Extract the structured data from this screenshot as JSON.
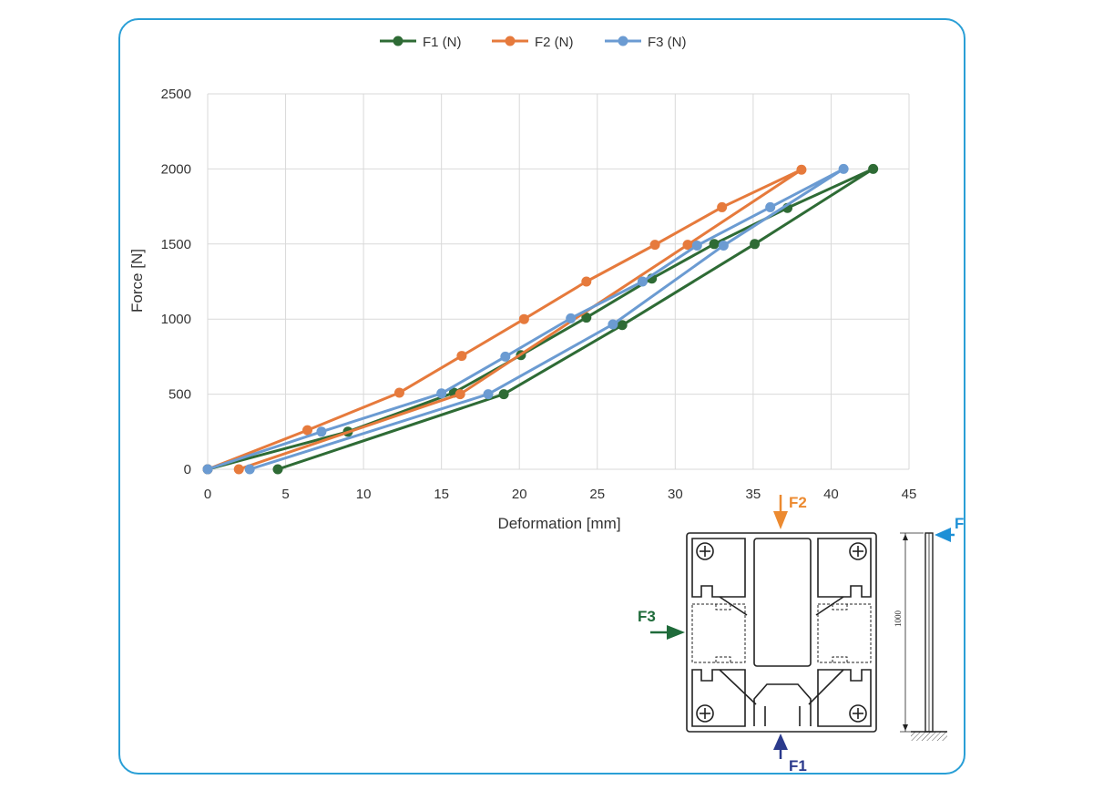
{
  "chart_data": {
    "type": "line",
    "title": "",
    "xlabel": "Deformation [mm]",
    "ylabel": "Force [N]",
    "xlim": [
      0,
      45
    ],
    "ylim": [
      0,
      2500
    ],
    "xticks": [
      0,
      5,
      10,
      15,
      20,
      25,
      30,
      35,
      40,
      45
    ],
    "yticks": [
      0,
      500,
      1000,
      1500,
      2000,
      2500
    ],
    "grid": true,
    "legend_position": "top",
    "series": [
      {
        "name": "F1 (N)",
        "color": "#2e6b35",
        "points": [
          [
            0,
            0
          ],
          [
            9,
            250
          ],
          [
            15.8,
            510
          ],
          [
            20.1,
            760
          ],
          [
            24.3,
            1010
          ],
          [
            28.5,
            1270
          ],
          [
            32.5,
            1500
          ],
          [
            37.2,
            1740
          ],
          [
            42.7,
            2000
          ],
          [
            35.1,
            1500
          ],
          [
            26.6,
            960
          ],
          [
            19,
            500
          ],
          [
            4.5,
            0
          ]
        ]
      },
      {
        "name": "F2 (N)",
        "color": "#e67a3c",
        "points": [
          [
            0,
            0
          ],
          [
            6.4,
            260
          ],
          [
            12.3,
            510
          ],
          [
            16.3,
            755
          ],
          [
            20.3,
            1000
          ],
          [
            24.3,
            1250
          ],
          [
            28.7,
            1495
          ],
          [
            33,
            1745
          ],
          [
            38.1,
            1995
          ],
          [
            30.8,
            1495
          ],
          [
            16.2,
            500
          ],
          [
            2,
            0
          ]
        ]
      },
      {
        "name": "F3 (N)",
        "color": "#6b9bd2",
        "points": [
          [
            0,
            0
          ],
          [
            7.3,
            250
          ],
          [
            15,
            505
          ],
          [
            19.1,
            750
          ],
          [
            23.3,
            1005
          ],
          [
            27.9,
            1250
          ],
          [
            31.4,
            1490
          ],
          [
            36.1,
            1745
          ],
          [
            40.8,
            2000
          ],
          [
            33.1,
            1490
          ],
          [
            26,
            965
          ],
          [
            18,
            500
          ],
          [
            2.7,
            0
          ]
        ]
      }
    ]
  },
  "diagram": {
    "force_labels": [
      "F2",
      "F3",
      "F1",
      "F"
    ],
    "dimension_label": "1000",
    "colors": {
      "F1": "#2b3a8c",
      "F2": "#ec8a30",
      "F3": "#1f6b3a",
      "F": "#1e90d6"
    }
  }
}
